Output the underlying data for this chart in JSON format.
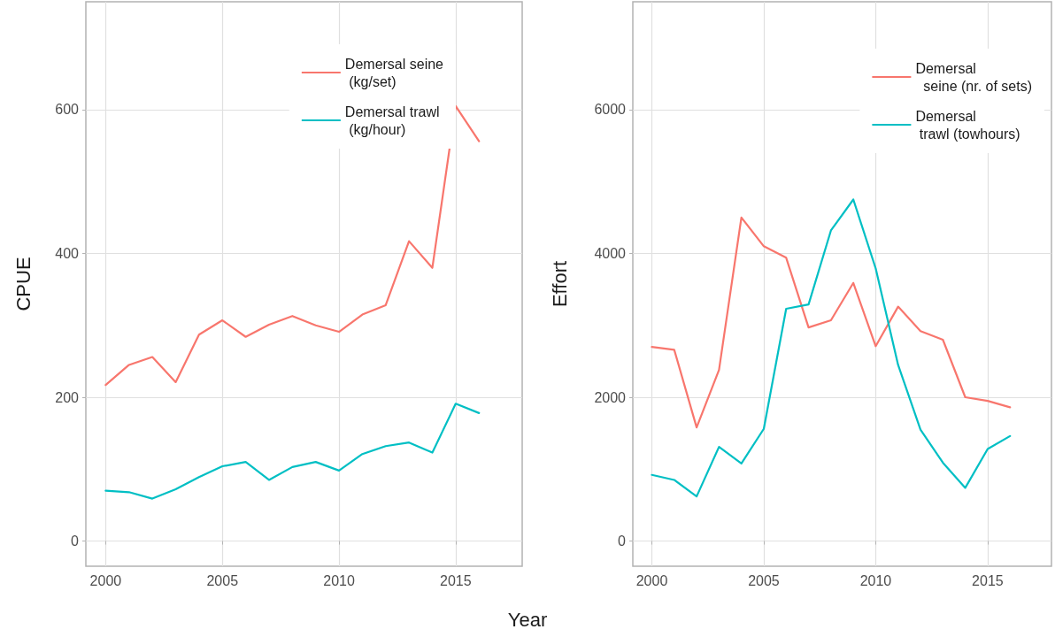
{
  "chart_data": [
    {
      "type": "line",
      "xlabel": "Year",
      "ylabel": "CPUE",
      "x": [
        2000,
        2001,
        2002,
        2003,
        2004,
        2005,
        2006,
        2007,
        2008,
        2009,
        2010,
        2011,
        2012,
        2013,
        2014,
        2015,
        2016
      ],
      "series": [
        {
          "name": "Demersal seine\n (kg/set)",
          "color": "#f8766d",
          "values": [
            217,
            245,
            256,
            221,
            287,
            307,
            284,
            301,
            313,
            300,
            291,
            315,
            328,
            417,
            380,
            605,
            556
          ]
        },
        {
          "name": "Demersal trawl\n (kg/hour)",
          "color": "#00bfc4",
          "values": [
            70,
            68,
            59,
            72,
            89,
            104,
            110,
            85,
            103,
            110,
            98,
            121,
            132,
            137,
            123,
            191,
            178
          ]
        }
      ],
      "xlim": [
        1999.15,
        2017.85
      ],
      "xticks": [
        2000,
        2005,
        2010,
        2015
      ],
      "ylim": [
        -35,
        750
      ],
      "yticks": [
        0,
        200,
        400,
        600
      ],
      "grid": true,
      "legend": "top right",
      "line_style": "solid"
    },
    {
      "type": "line",
      "ylabel": "Effort",
      "x": [
        2000,
        2001,
        2002,
        2003,
        2004,
        2005,
        2006,
        2007,
        2008,
        2009,
        2010,
        2011,
        2012,
        2013,
        2014,
        2015,
        2016
      ],
      "series": [
        {
          "name": "Demersal\n  seine (nr. of sets)",
          "color": "#f8766d",
          "values": [
            2700,
            2660,
            1580,
            2380,
            4500,
            4100,
            3940,
            2970,
            3070,
            3590,
            2710,
            3260,
            2920,
            2800,
            2000,
            1950,
            1860
          ]
        },
        {
          "name": "Demersal\n trawl (towhours)",
          "color": "#00bfc4",
          "values": [
            920,
            850,
            620,
            1310,
            1080,
            1560,
            3230,
            3290,
            4320,
            4750,
            3790,
            2450,
            1550,
            1090,
            740,
            1280,
            1460
          ]
        }
      ],
      "xlim": [
        1999.15,
        2017.85
      ],
      "xticks": [
        2000,
        2005,
        2010,
        2015
      ],
      "ylim": [
        -350,
        7500
      ],
      "yticks": [
        0,
        2000,
        4000,
        6000
      ],
      "grid": true,
      "legend": "top right",
      "line_style": "solid"
    }
  ]
}
